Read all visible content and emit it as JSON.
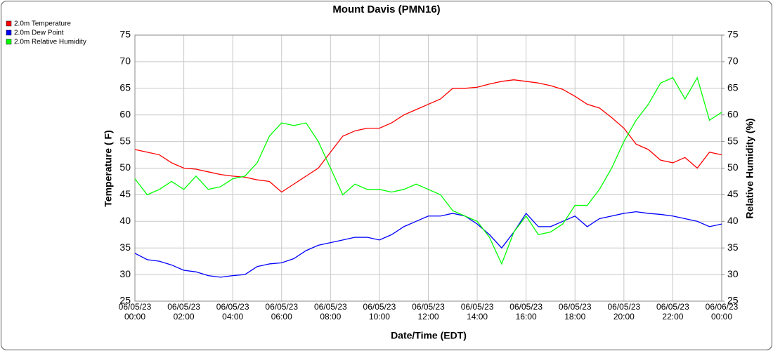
{
  "chart_data": {
    "type": "line",
    "title": "Mount Davis (PMN16)",
    "x_label": "Date/Time (EDT)",
    "y_label": "Temperature ( F)",
    "y2_label": "Relative Humidity (%)",
    "xlim": [
      "06/05/23 00:00",
      "06/06/23 00:00"
    ],
    "xticks": [
      "06/05/23 00:00",
      "06/05/23 02:00",
      "06/05/23 04:00",
      "06/05/23 06:00",
      "06/05/23 08:00",
      "06/05/23 10:00",
      "06/05/23 12:00",
      "06/05/23 14:00",
      "06/05/23 16:00",
      "06/05/23 18:00",
      "06/05/23 20:00",
      "06/05/23 22:00",
      "06/06/23 00:00"
    ],
    "ylim": [
      25,
      75
    ],
    "yticks": [
      25,
      30,
      35,
      40,
      45,
      50,
      55,
      60,
      65,
      70,
      75
    ],
    "y2lim": [
      25,
      75
    ],
    "y2ticks": [
      25,
      30,
      35,
      40,
      45,
      50,
      55,
      60,
      65,
      70,
      75
    ],
    "grid": true,
    "legend": "top-left",
    "x": [
      "06/05/23 00:00",
      "06/05/23 00:30",
      "06/05/23 01:00",
      "06/05/23 01:30",
      "06/05/23 02:00",
      "06/05/23 02:30",
      "06/05/23 03:00",
      "06/05/23 03:30",
      "06/05/23 04:00",
      "06/05/23 04:30",
      "06/05/23 05:00",
      "06/05/23 05:30",
      "06/05/23 06:00",
      "06/05/23 06:30",
      "06/05/23 07:00",
      "06/05/23 07:30",
      "06/05/23 08:00",
      "06/05/23 08:30",
      "06/05/23 09:00",
      "06/05/23 09:30",
      "06/05/23 10:00",
      "06/05/23 10:30",
      "06/05/23 11:00",
      "06/05/23 11:30",
      "06/05/23 12:00",
      "06/05/23 12:30",
      "06/05/23 13:00",
      "06/05/23 13:30",
      "06/05/23 14:00",
      "06/05/23 14:30",
      "06/05/23 15:00",
      "06/05/23 15:30",
      "06/05/23 16:00",
      "06/05/23 16:30",
      "06/05/23 17:00",
      "06/05/23 17:30",
      "06/05/23 18:00",
      "06/05/23 18:30",
      "06/05/23 19:00",
      "06/05/23 19:30",
      "06/05/23 20:00",
      "06/05/23 20:30",
      "06/05/23 21:00",
      "06/05/23 21:30",
      "06/05/23 22:00",
      "06/05/23 22:30",
      "06/05/23 23:00",
      "06/05/23 23:30",
      "06/06/23 00:00"
    ],
    "series": [
      {
        "name": "2.0m Temperature",
        "color": "#ff0000",
        "values": [
          53.5,
          53,
          52.5,
          51,
          50,
          49.8,
          49.3,
          48.8,
          48.5,
          48.3,
          47.8,
          47.5,
          45.5,
          47,
          48.5,
          50,
          53,
          56,
          57,
          57.5,
          57.5,
          58.5,
          60,
          61,
          62,
          63,
          65,
          65,
          65.2,
          65.8,
          66.3,
          66.6,
          66.3,
          66,
          65.5,
          64.8,
          63.5,
          62,
          61.3,
          59.5,
          57.5,
          54.5,
          53.5,
          51.5,
          51,
          52,
          50,
          53,
          52.5
        ]
      },
      {
        "name": "2.0m Dew Point",
        "color": "#0000ff",
        "values": [
          34,
          32.8,
          32.5,
          31.8,
          30.8,
          30.5,
          29.8,
          29.5,
          29.8,
          30,
          31.5,
          32,
          32.2,
          33,
          34.5,
          35.5,
          36,
          36.5,
          37,
          37,
          36.5,
          37.5,
          39,
          40,
          41,
          41,
          41.5,
          41,
          39.5,
          37.5,
          35,
          38,
          41.5,
          39,
          39,
          40,
          41,
          39,
          40.5,
          41,
          41.5,
          41.8,
          41.5,
          41.3,
          41,
          40.5,
          40,
          39,
          39.5
        ]
      },
      {
        "name": "2.0m Relative Humidity",
        "color": "#00ff00",
        "axis": "y2",
        "values": [
          48,
          45,
          46,
          47.5,
          46,
          48.5,
          46,
          46.5,
          48,
          48.5,
          51,
          56,
          58.5,
          58,
          58.5,
          55,
          50,
          45,
          47,
          46,
          46,
          45.5,
          46,
          47,
          46,
          45,
          42,
          41,
          40,
          37,
          32,
          38,
          41,
          37.5,
          38,
          39.5,
          43,
          43,
          46,
          50,
          55,
          59,
          62,
          66,
          67,
          63,
          67,
          59,
          60.5
        ]
      }
    ]
  }
}
